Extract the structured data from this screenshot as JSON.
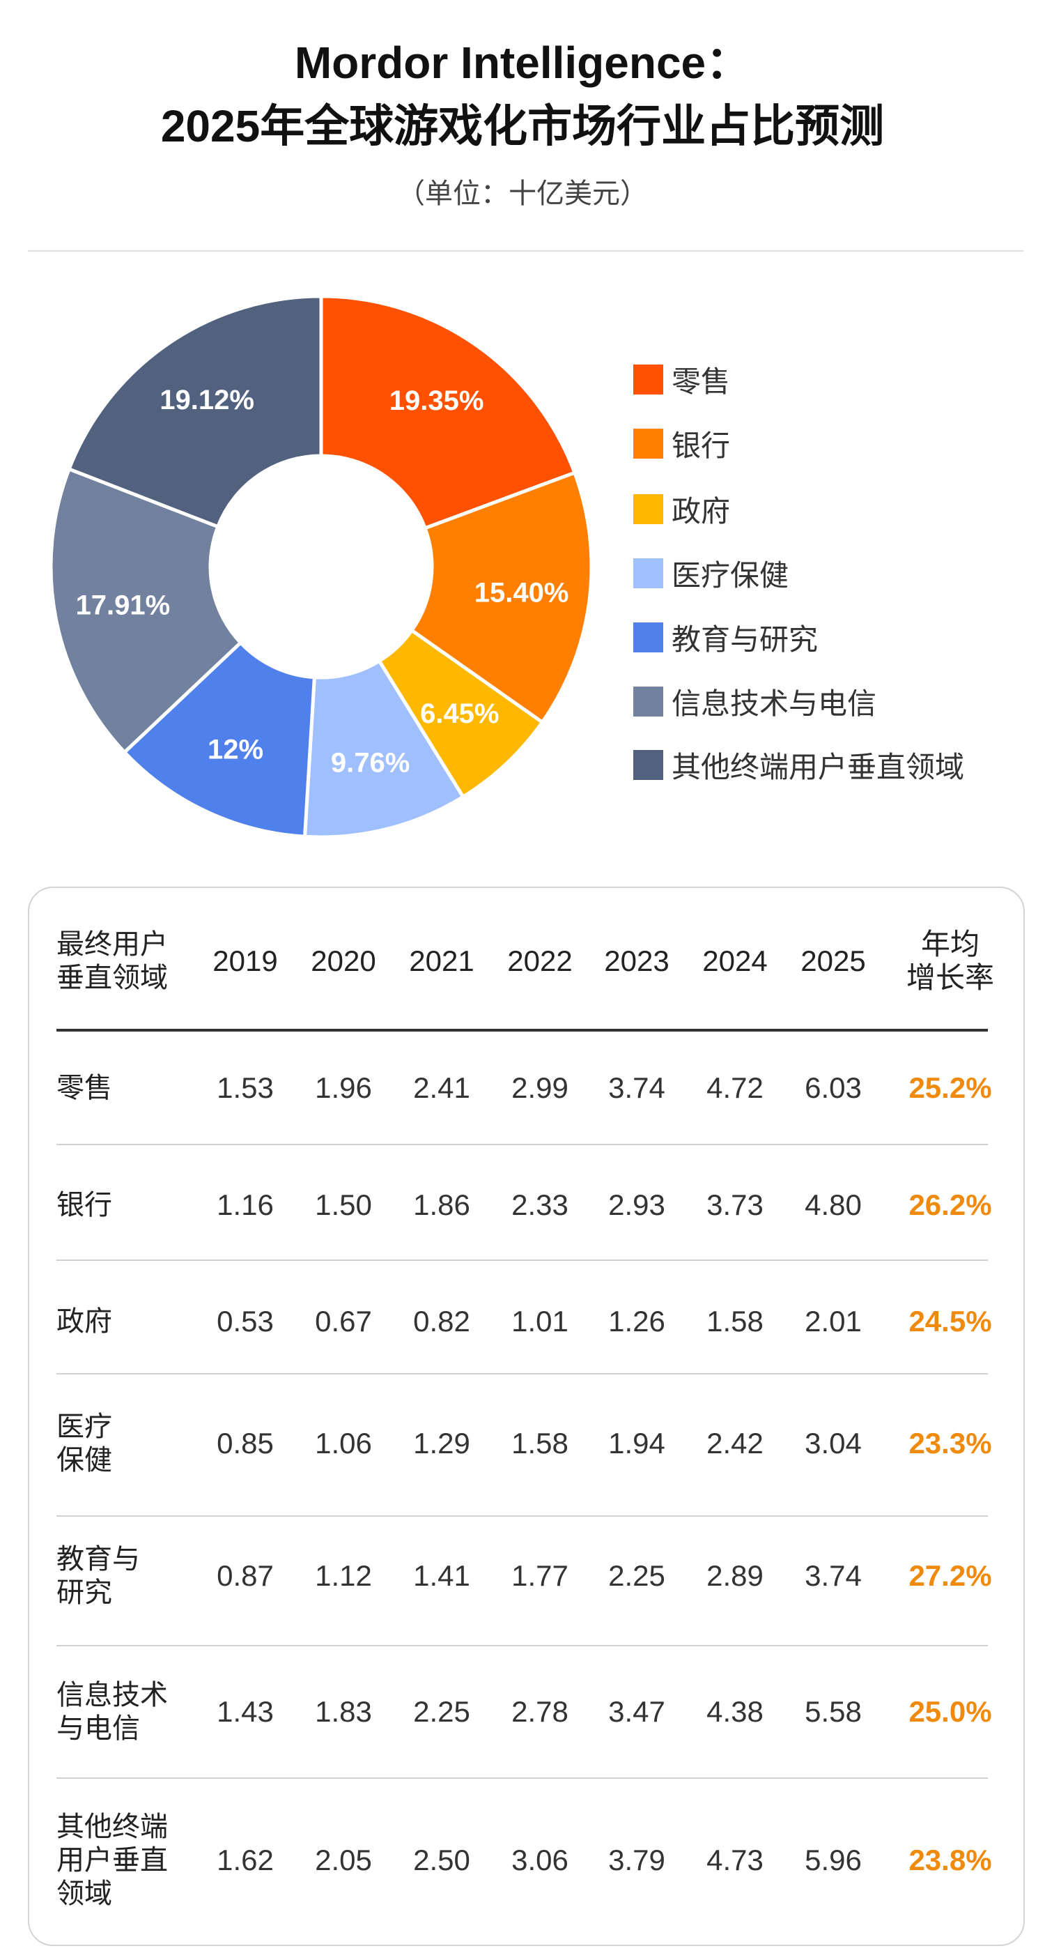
{
  "title_line1": "Mordor Intelligence：",
  "title_line2": "2025年全球游戏化市场行业占比预测",
  "subtitle": "（单位：十亿美元）",
  "chart_data": [
    {
      "type": "pie",
      "variant": "donut",
      "title": "2025年全球游戏化市场行业占比预测",
      "categories": [
        "零售",
        "银行",
        "政府",
        "医疗保健",
        "教育与研究",
        "信息技术与电信",
        "其他终端用户垂直领域"
      ],
      "values": [
        19.35,
        15.4,
        6.45,
        9.76,
        12,
        17.91,
        19.12
      ],
      "labels": [
        "19.35%",
        "15.40%",
        "6.45%",
        "9.76%",
        "12%",
        "17.91%",
        "19.12%"
      ],
      "colors": [
        "#FF5100",
        "#FF8000",
        "#FFB800",
        "#A0BFFF",
        "#5080EC",
        "#72829E",
        "#52627E"
      ],
      "legend_position": "right"
    },
    {
      "type": "table",
      "columns": [
        "最终用户\n垂直领域",
        "2019",
        "2020",
        "2021",
        "2022",
        "2023",
        "2024",
        "2025",
        "年均\n增长率"
      ],
      "rows": [
        {
          "label": "零售",
          "values": [
            "1.53",
            "1.96",
            "2.41",
            "2.99",
            "3.74",
            "4.72",
            "6.03"
          ],
          "cagr": "25.2%"
        },
        {
          "label": "银行",
          "values": [
            "1.16",
            "1.50",
            "1.86",
            "2.33",
            "2.93",
            "3.73",
            "4.80"
          ],
          "cagr": "26.2%"
        },
        {
          "label": "政府",
          "values": [
            "0.53",
            "0.67",
            "0.82",
            "1.01",
            "1.26",
            "1.58",
            "2.01"
          ],
          "cagr": "24.5%"
        },
        {
          "label": "医疗\n保健",
          "values": [
            "0.85",
            "1.06",
            "1.29",
            "1.58",
            "1.94",
            "2.42",
            "3.04"
          ],
          "cagr": "23.3%"
        },
        {
          "label": "教育与\n研究",
          "values": [
            "0.87",
            "1.12",
            "1.41",
            "1.77",
            "2.25",
            "2.89",
            "3.74"
          ],
          "cagr": "27.2%"
        },
        {
          "label": "信息技术\n与电信",
          "values": [
            "1.43",
            "1.83",
            "2.25",
            "2.78",
            "3.47",
            "4.38",
            "5.58"
          ],
          "cagr": "25.0%"
        },
        {
          "label": "其他终端\n用户垂直\n领域",
          "values": [
            "1.62",
            "2.05",
            "2.50",
            "3.06",
            "3.79",
            "4.73",
            "5.96"
          ],
          "cagr": "23.8%"
        }
      ],
      "cagr_color": "#F08A0C"
    }
  ]
}
